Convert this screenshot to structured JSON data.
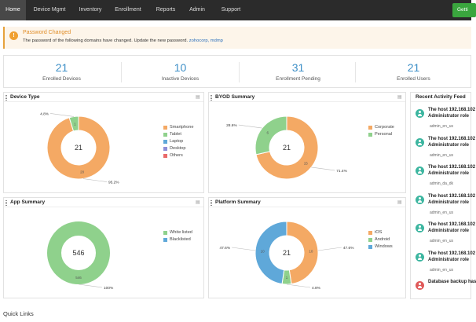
{
  "nav": {
    "tabs": [
      {
        "label": "Home",
        "active": true
      },
      {
        "label": "Device Mgmt"
      },
      {
        "label": "Inventory"
      },
      {
        "label": "Enrollment"
      },
      {
        "label": "Reports"
      },
      {
        "label": "Admin"
      },
      {
        "label": "Support"
      }
    ],
    "cta_label": "Getti"
  },
  "alert": {
    "title": "Password Changed",
    "message": "The password of the following domains have changed. Update the new password.",
    "domains": "zohocorp, mdmp"
  },
  "stats": [
    {
      "value": "21",
      "label": "Enrolled Devices"
    },
    {
      "value": "10",
      "label": "Inactive Devices"
    },
    {
      "value": "31",
      "label": "Enrollment Pending"
    },
    {
      "value": "21",
      "label": "Enrolled Users"
    }
  ],
  "panels": {
    "device_type": {
      "title": "Device Type"
    },
    "byod": {
      "title": "BYOD Summary"
    },
    "app": {
      "title": "App Summary"
    },
    "platform": {
      "title": "Platform Summary"
    }
  },
  "chart_data": [
    {
      "type": "pie",
      "title": "Device Type",
      "center_label": "21",
      "categories": [
        "Smartphone",
        "Tablet",
        "Laptop",
        "Desktop",
        "Others"
      ],
      "values": [
        20,
        1,
        0,
        0,
        0
      ],
      "percent_labels": [
        "95.2%",
        "4.8%"
      ],
      "colors": [
        "#f4a964",
        "#8fd18c",
        "#5fa8d9",
        "#8e8ed8",
        "#e96a6a"
      ],
      "legend": "right"
    },
    {
      "type": "pie",
      "title": "BYOD Summary",
      "center_label": "21",
      "categories": [
        "Corporate",
        "Personal"
      ],
      "values": [
        15,
        6
      ],
      "percent_labels": [
        "71.4%",
        "28.6%"
      ],
      "colors": [
        "#f4a964",
        "#8fd18c"
      ],
      "legend": "right"
    },
    {
      "type": "pie",
      "title": "App Summary",
      "center_label": "546",
      "categories": [
        "White listed",
        "Blacklisted"
      ],
      "values": [
        546,
        0
      ],
      "percent_labels": [
        "100%"
      ],
      "colors": [
        "#8fd18c",
        "#5fa8d9"
      ],
      "legend": "right"
    },
    {
      "type": "pie",
      "title": "Platform Summary",
      "center_label": "21",
      "categories": [
        "iOS",
        "Android",
        "Windows"
      ],
      "values": [
        10,
        1,
        10
      ],
      "percent_labels": [
        "47.6%",
        "4.8%",
        "47.6%"
      ],
      "colors": [
        "#f4a964",
        "#8fd18c",
        "#5fa8d9"
      ],
      "legend": "right"
    }
  ],
  "feed": {
    "title": "Recent Activity Feed",
    "items": [
      {
        "line1": "The host 192.168.102",
        "line2": "Administrator role",
        "user": "admin_en_us",
        "kind": "user"
      },
      {
        "line1": "The host 192.168.102",
        "line2": "Administrator role",
        "user": "admin_en_us",
        "kind": "user"
      },
      {
        "line1": "The host 192.168.102",
        "line2": "Administrator role",
        "user": "admin_da_dk",
        "kind": "user"
      },
      {
        "line1": "The host 192.168.102",
        "line2": "Administrator role",
        "user": "admin_en_us",
        "kind": "user"
      },
      {
        "line1": "The host 192.168.102",
        "line2": "Administrator role",
        "user": "admin_en_us",
        "kind": "user"
      },
      {
        "line1": "The host 192.168.102",
        "line2": "Administrator role",
        "user": "admin_en_us",
        "kind": "user"
      },
      {
        "line1": "Database backup has",
        "line2": "",
        "user": "",
        "kind": "db"
      }
    ]
  },
  "quick_links": {
    "title": "Quick Links"
  },
  "colors": {
    "nav_bg": "#2b2b2b",
    "accent_blue": "#3d8fc7",
    "alert_orange": "#e6a23c",
    "cta_green": "#3aa63e"
  }
}
